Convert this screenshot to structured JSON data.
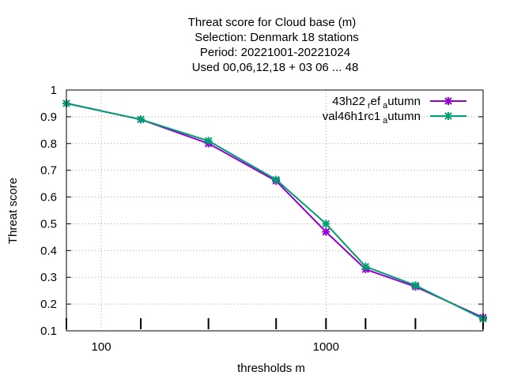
{
  "chart_data": {
    "type": "line",
    "title_lines": [
      "Threat score  for Cloud base (m)",
      "Selection: Denmark     18 stations",
      "Period: 20221001-20221024",
      "Used  00,06,12,18  + 03 06 ... 48"
    ],
    "xlabel": "thresholds m",
    "ylabel": "Threat score",
    "xscale": "log",
    "xlim": [
      70,
      5000
    ],
    "ylim": [
      0.1,
      1.0
    ],
    "x_ticks": [
      100,
      1000
    ],
    "x_tick_labels": [
      "100",
      "1000"
    ],
    "y_ticks": [
      0.1,
      0.2,
      0.3,
      0.4,
      0.5,
      0.6,
      0.7,
      0.8,
      0.9,
      1.0
    ],
    "y_tick_labels": [
      "0.1",
      "0.2",
      "0.3",
      "0.4",
      "0.5",
      "0.6",
      "0.7",
      "0.8",
      "0.9",
      "1"
    ],
    "grid": true,
    "legend_position": "top-right",
    "x": [
      70,
      150,
      300,
      600,
      1000,
      1500,
      2500,
      5000
    ],
    "series": [
      {
        "name_main": "43h22",
        "name_sub1": "r",
        "name_mid": "ef",
        "name_sub2": "a",
        "name_tail": "utumn",
        "color": "#9400d3",
        "values": [
          0.95,
          0.89,
          0.8,
          0.66,
          0.47,
          0.33,
          0.265,
          0.15
        ]
      },
      {
        "name_main": "val46h1rc1",
        "name_sub1": "",
        "name_mid": "",
        "name_sub2": "a",
        "name_tail": "utumn",
        "color": "#009e73",
        "values": [
          0.95,
          0.89,
          0.81,
          0.665,
          0.5,
          0.34,
          0.27,
          0.145
        ]
      }
    ]
  }
}
